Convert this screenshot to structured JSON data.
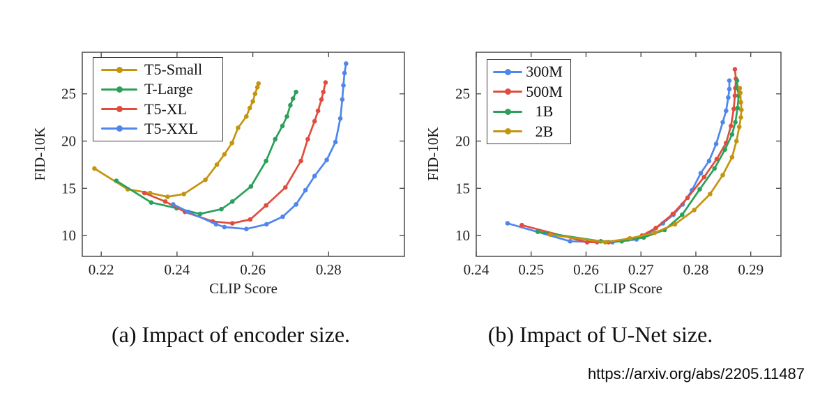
{
  "source": {
    "url": "https://arxiv.org/abs/2205.11487"
  },
  "chart_data": [
    {
      "id": "encoder",
      "type": "line",
      "caption": "(a) Impact of encoder size.",
      "xlabel": "CLIP Score",
      "ylabel": "FID-10K",
      "xlim": [
        0.215,
        0.3
      ],
      "ylim": [
        7.8,
        29.4
      ],
      "x_ticks": [
        0.22,
        0.24,
        0.26,
        0.28
      ],
      "x_tick_labels": [
        "0.22",
        "0.24",
        "0.26",
        "0.28"
      ],
      "y_ticks": [
        10,
        15,
        20,
        25
      ],
      "y_tick_labels": [
        "10",
        "15",
        "20",
        "25"
      ],
      "grid": false,
      "legend_position": "top-left",
      "series": [
        {
          "name": "T5-Small",
          "color": "#c3940e",
          "points": [
            [
              0.2182,
              17.1
            ],
            [
              0.227,
              14.9
            ],
            [
              0.2329,
              14.5
            ],
            [
              0.2375,
              14.1
            ],
            [
              0.2418,
              14.4
            ],
            [
              0.2475,
              15.9
            ],
            [
              0.2505,
              17.5
            ],
            [
              0.2525,
              18.6
            ],
            [
              0.2545,
              19.8
            ],
            [
              0.2561,
              21.4
            ],
            [
              0.2583,
              22.6
            ],
            [
              0.2592,
              23.5
            ],
            [
              0.26,
              24.2
            ],
            [
              0.2606,
              25.0
            ],
            [
              0.2612,
              25.7
            ],
            [
              0.2615,
              26.1
            ]
          ]
        },
        {
          "name": "T-Large",
          "color": "#2aa05a",
          "points": [
            [
              0.224,
              15.8
            ],
            [
              0.2332,
              13.5
            ],
            [
              0.2399,
              12.9
            ],
            [
              0.2461,
              12.3
            ],
            [
              0.2517,
              12.8
            ],
            [
              0.2546,
              13.6
            ],
            [
              0.2595,
              15.2
            ],
            [
              0.2635,
              17.9
            ],
            [
              0.2659,
              20.2
            ],
            [
              0.2678,
              21.6
            ],
            [
              0.269,
              22.6
            ],
            [
              0.2699,
              23.8
            ],
            [
              0.2706,
              24.5
            ],
            [
              0.2714,
              25.2
            ]
          ]
        },
        {
          "name": "T5-XL",
          "color": "#e04c3e",
          "points": [
            [
              0.2314,
              14.5
            ],
            [
              0.2369,
              13.6
            ],
            [
              0.2421,
              12.5
            ],
            [
              0.2494,
              11.5
            ],
            [
              0.2546,
              11.3
            ],
            [
              0.2593,
              11.7
            ],
            [
              0.2635,
              13.2
            ],
            [
              0.2686,
              15.1
            ],
            [
              0.2727,
              17.9
            ],
            [
              0.2745,
              20.2
            ],
            [
              0.2763,
              22.1
            ],
            [
              0.2772,
              23.2
            ],
            [
              0.2781,
              24.4
            ],
            [
              0.2786,
              25.2
            ],
            [
              0.2792,
              26.2
            ]
          ]
        },
        {
          "name": "T5-XXL",
          "color": "#4f86ec",
          "points": [
            [
              0.239,
              13.3
            ],
            [
              0.243,
              12.5
            ],
            [
              0.2503,
              11.2
            ],
            [
              0.2525,
              10.9
            ],
            [
              0.2583,
              10.7
            ],
            [
              0.2636,
              11.2
            ],
            [
              0.2679,
              12.0
            ],
            [
              0.2714,
              13.3
            ],
            [
              0.2739,
              14.8
            ],
            [
              0.2763,
              16.3
            ],
            [
              0.2795,
              18.0
            ],
            [
              0.2818,
              19.9
            ],
            [
              0.2831,
              22.4
            ],
            [
              0.2836,
              24.4
            ],
            [
              0.2839,
              25.9
            ],
            [
              0.2842,
              27.2
            ],
            [
              0.2846,
              28.2
            ]
          ]
        }
      ]
    },
    {
      "id": "unet",
      "type": "line",
      "caption": "(b) Impact of U-Net size.",
      "xlabel": "CLIP Score",
      "ylabel": "FID-10K",
      "xlim": [
        0.24,
        0.2955
      ],
      "ylim": [
        7.8,
        29.4
      ],
      "x_ticks": [
        0.24,
        0.25,
        0.26,
        0.27,
        0.28,
        0.29
      ],
      "x_tick_labels": [
        "0.24",
        "0.25",
        "0.26",
        "0.27",
        "0.28",
        "0.29"
      ],
      "y_ticks": [
        10,
        15,
        20,
        25
      ],
      "y_tick_labels": [
        "10",
        "15",
        "20",
        "25"
      ],
      "grid": false,
      "legend_position": "top-left",
      "series": [
        {
          "name": "300M",
          "color": "#4f86ec",
          "points": [
            [
              0.2457,
              11.3
            ],
            [
              0.2571,
              9.4
            ],
            [
              0.262,
              9.3
            ],
            [
              0.2648,
              9.3
            ],
            [
              0.2692,
              9.6
            ],
            [
              0.2713,
              10.2
            ],
            [
              0.274,
              11.3
            ],
            [
              0.2759,
              12.2
            ],
            [
              0.2776,
              13.3
            ],
            [
              0.2793,
              14.8
            ],
            [
              0.2809,
              16.6
            ],
            [
              0.2824,
              17.9
            ],
            [
              0.2837,
              19.7
            ],
            [
              0.2849,
              22.0
            ],
            [
              0.2855,
              23.2
            ],
            [
              0.2859,
              24.6
            ],
            [
              0.2861,
              25.5
            ],
            [
              0.2861,
              26.4
            ]
          ]
        },
        {
          "name": "500M",
          "color": "#e04c3e",
          "points": [
            [
              0.2483,
              11.1
            ],
            [
              0.2602,
              9.3
            ],
            [
              0.2641,
              9.3
            ],
            [
              0.2677,
              9.6
            ],
            [
              0.2702,
              10.0
            ],
            [
              0.2727,
              10.8
            ],
            [
              0.2758,
              12.3
            ],
            [
              0.2785,
              14.0
            ],
            [
              0.2815,
              16.2
            ],
            [
              0.2838,
              18.1
            ],
            [
              0.2855,
              19.8
            ],
            [
              0.2864,
              21.6
            ],
            [
              0.2869,
              23.4
            ],
            [
              0.2871,
              24.8
            ],
            [
              0.2872,
              25.6
            ],
            [
              0.2873,
              26.6
            ],
            [
              0.2871,
              27.6
            ]
          ]
        },
        {
          "name": "1B",
          "color": "#2aa05a",
          "points": [
            [
              0.2512,
              10.4
            ],
            [
              0.2627,
              9.4
            ],
            [
              0.2665,
              9.4
            ],
            [
              0.2705,
              9.8
            ],
            [
              0.2743,
              10.6
            ],
            [
              0.2775,
              12.2
            ],
            [
              0.2807,
              14.9
            ],
            [
              0.2834,
              17.1
            ],
            [
              0.2853,
              19.1
            ],
            [
              0.2866,
              20.7
            ],
            [
              0.2872,
              22.0
            ],
            [
              0.2876,
              23.5
            ],
            [
              0.2878,
              24.8
            ],
            [
              0.2876,
              25.6
            ],
            [
              0.2875,
              26.4
            ]
          ]
        },
        {
          "name": "2B",
          "color": "#c3940e",
          "points": [
            [
              0.2535,
              10.1
            ],
            [
              0.2635,
              9.3
            ],
            [
              0.268,
              9.7
            ],
            [
              0.2725,
              10.3
            ],
            [
              0.2762,
              11.2
            ],
            [
              0.2797,
              12.7
            ],
            [
              0.2826,
              14.4
            ],
            [
              0.2849,
              16.4
            ],
            [
              0.2866,
              18.3
            ],
            [
              0.2874,
              20.0
            ],
            [
              0.2879,
              21.5
            ],
            [
              0.2882,
              22.5
            ],
            [
              0.2883,
              23.3
            ],
            [
              0.2882,
              24.1
            ],
            [
              0.2881,
              25.1
            ],
            [
              0.288,
              25.6
            ]
          ]
        }
      ]
    }
  ]
}
